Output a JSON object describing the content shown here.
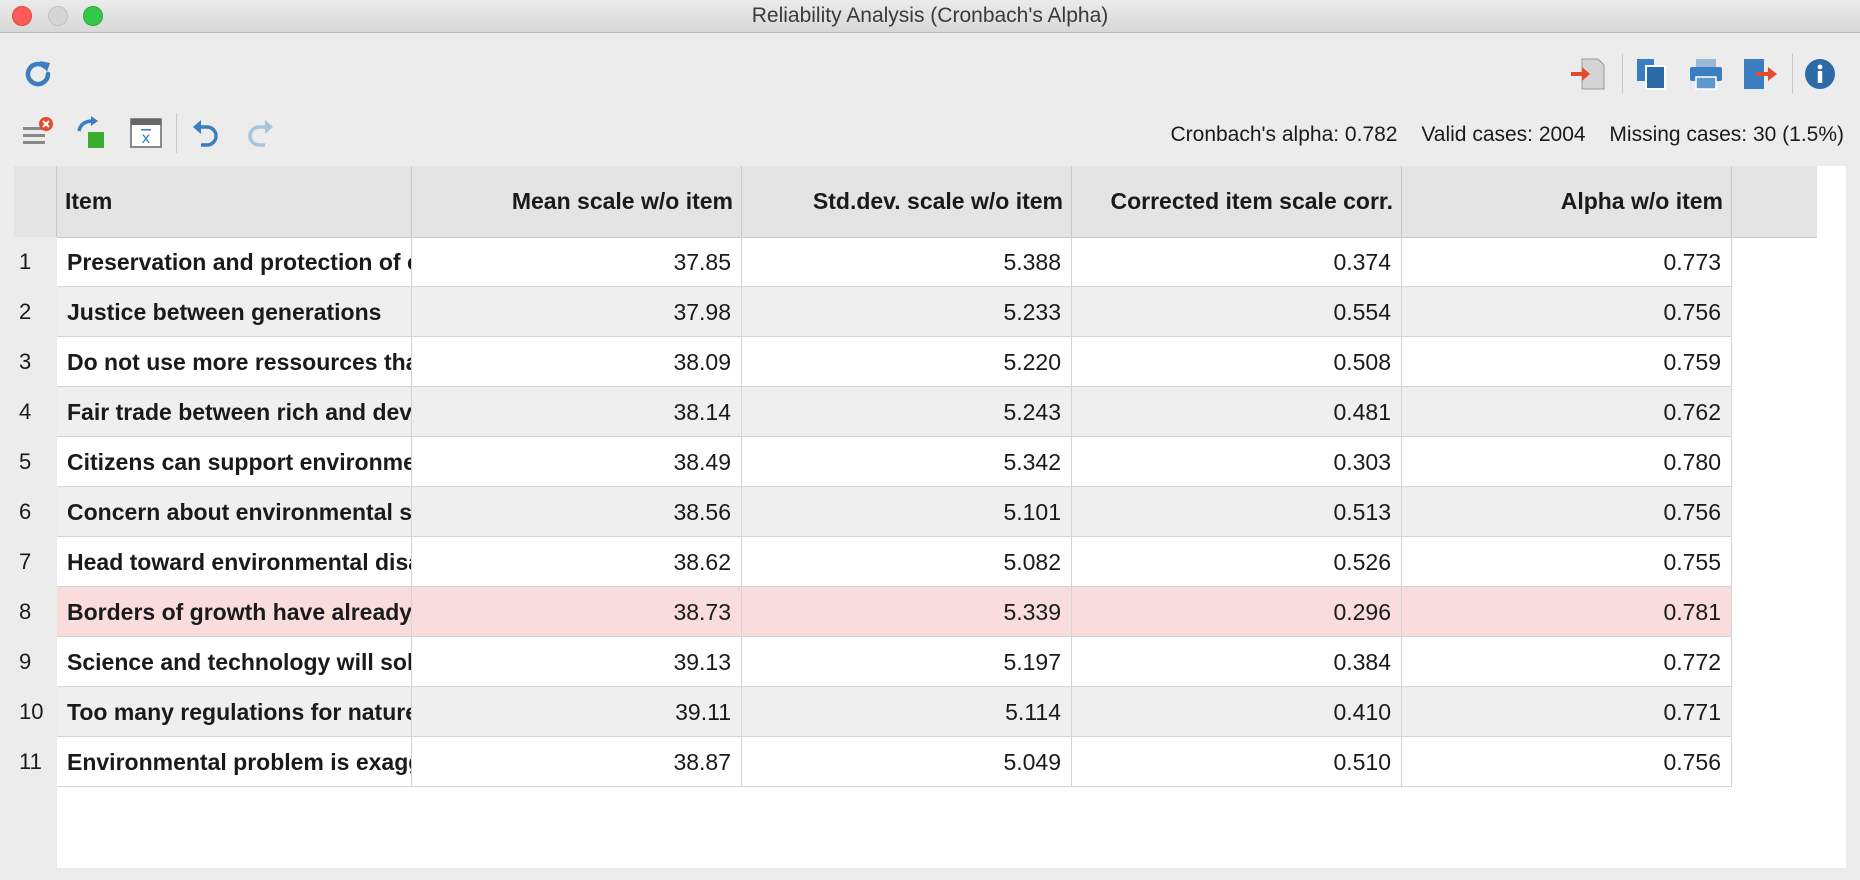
{
  "window": {
    "title": "Reliability Analysis (Cronbach's Alpha)"
  },
  "stats": {
    "alpha": "Cronbach's alpha: 0.782",
    "valid": "Valid cases: 2004",
    "missing": "Missing cases: 30 (1.5%)"
  },
  "table": {
    "headers": [
      "Item",
      "Mean scale w/o item",
      "Std.dev. scale w/o item",
      "Corrected item scale corr.",
      "Alpha w/o item"
    ],
    "rows": [
      {
        "n": "1",
        "item": "Preservation and protection of o...",
        "mean": "37.85",
        "sd": "5.388",
        "corr": "0.374",
        "alpha": "0.773"
      },
      {
        "n": "2",
        "item": "Justice between generations",
        "mean": "37.98",
        "sd": "5.233",
        "corr": "0.554",
        "alpha": "0.756"
      },
      {
        "n": "3",
        "item": "Do not use more ressources than...",
        "mean": "38.09",
        "sd": "5.220",
        "corr": "0.508",
        "alpha": "0.759"
      },
      {
        "n": "4",
        "item": "Fair trade between rich and deve...",
        "mean": "38.14",
        "sd": "5.243",
        "corr": "0.481",
        "alpha": "0.762"
      },
      {
        "n": "5",
        "item": "Citizens can support environme...",
        "mean": "38.49",
        "sd": "5.342",
        "corr": "0.303",
        "alpha": "0.780"
      },
      {
        "n": "6",
        "item": "Concern about environmental sit...",
        "mean": "38.56",
        "sd": "5.101",
        "corr": "0.513",
        "alpha": "0.756"
      },
      {
        "n": "7",
        "item": "Head toward environmental disa...",
        "mean": "38.62",
        "sd": "5.082",
        "corr": "0.526",
        "alpha": "0.755"
      },
      {
        "n": "8",
        "item": "Borders of growth have already cros",
        "mean": "38.73",
        "sd": "5.339",
        "corr": "0.296",
        "alpha": "0.781"
      },
      {
        "n": "9",
        "item": "Science and technology will solv...",
        "mean": "39.13",
        "sd": "5.197",
        "corr": "0.384",
        "alpha": "0.772"
      },
      {
        "n": "10",
        "item": "Too many regulations for nature ...",
        "mean": "39.11",
        "sd": "5.114",
        "corr": "0.410",
        "alpha": "0.771"
      },
      {
        "n": "11",
        "item": "Environmental problem is exagg...",
        "mean": "38.87",
        "sd": "5.049",
        "corr": "0.510",
        "alpha": "0.756"
      }
    ]
  },
  "highlight_color": "#f9dcdc",
  "accent_color": "#3a7ec1"
}
